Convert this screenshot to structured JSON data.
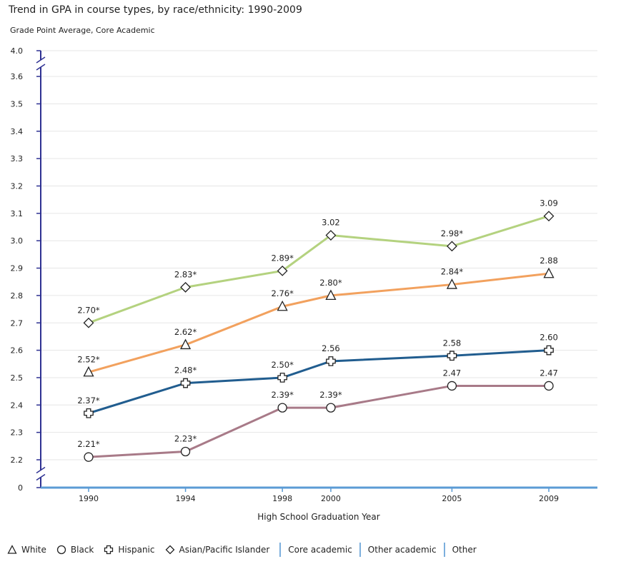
{
  "chart_data": {
    "type": "line",
    "title": "Trend in GPA in course types, by race/ethnicity: 1990-2009",
    "ylabel": "Grade Point Average, Core Academic",
    "xlabel": "High School Graduation Year",
    "x": [
      1990,
      1994,
      1998,
      2000,
      2005,
      2009
    ],
    "xticks": [
      "1990",
      "1994",
      "1998",
      "2000",
      "2005",
      "2009"
    ],
    "yticks": [
      "0",
      "2.2",
      "2.3",
      "2.4",
      "2.5",
      "2.6",
      "2.7",
      "2.8",
      "2.9",
      "3.0",
      "3.1",
      "3.2",
      "3.3",
      "3.4",
      "3.5",
      "3.6",
      "4.0"
    ],
    "ylim": [
      0,
      4.0
    ],
    "axis_break": true,
    "series": [
      {
        "name": "Asian/Pacific Islander",
        "marker": "diamond",
        "color": "#b4d27f",
        "values": [
          2.7,
          2.83,
          2.89,
          3.02,
          2.98,
          3.09
        ],
        "labels": [
          "2.70*",
          "2.83*",
          "2.89*",
          "3.02",
          "2.98*",
          "3.09"
        ]
      },
      {
        "name": "White",
        "marker": "triangle",
        "color": "#f2a15e",
        "values": [
          2.52,
          2.62,
          2.76,
          2.8,
          2.84,
          2.88
        ],
        "labels": [
          "2.52*",
          "2.62*",
          "2.76*",
          "2.80*",
          "2.84*",
          "2.88"
        ]
      },
      {
        "name": "Hispanic",
        "marker": "cross",
        "color": "#215d8f",
        "values": [
          2.37,
          2.48,
          2.5,
          2.56,
          2.58,
          2.6
        ],
        "labels": [
          "2.37*",
          "2.48*",
          "2.50*",
          "2.56",
          "2.58",
          "2.60"
        ]
      },
      {
        "name": "Black",
        "marker": "circle",
        "color": "#a87a88",
        "values": [
          2.21,
          2.23,
          2.39,
          2.39,
          2.47,
          2.47
        ],
        "labels": [
          "2.21*",
          "2.23*",
          "2.39*",
          "2.39*",
          "2.47",
          "2.47"
        ]
      }
    ]
  },
  "legend": {
    "markers": [
      {
        "label": "White",
        "icon": "triangle-icon"
      },
      {
        "label": "Black",
        "icon": "circle-icon"
      },
      {
        "label": "Hispanic",
        "icon": "cross-icon"
      },
      {
        "label": "Asian/Pacific Islander",
        "icon": "diamond-icon"
      }
    ],
    "course_types": [
      "Core academic",
      "Other academic",
      "Other"
    ]
  },
  "colors": {
    "axis": "#2e3192",
    "baseline": "#5b9bd5",
    "grid": "#e6e6e6"
  }
}
